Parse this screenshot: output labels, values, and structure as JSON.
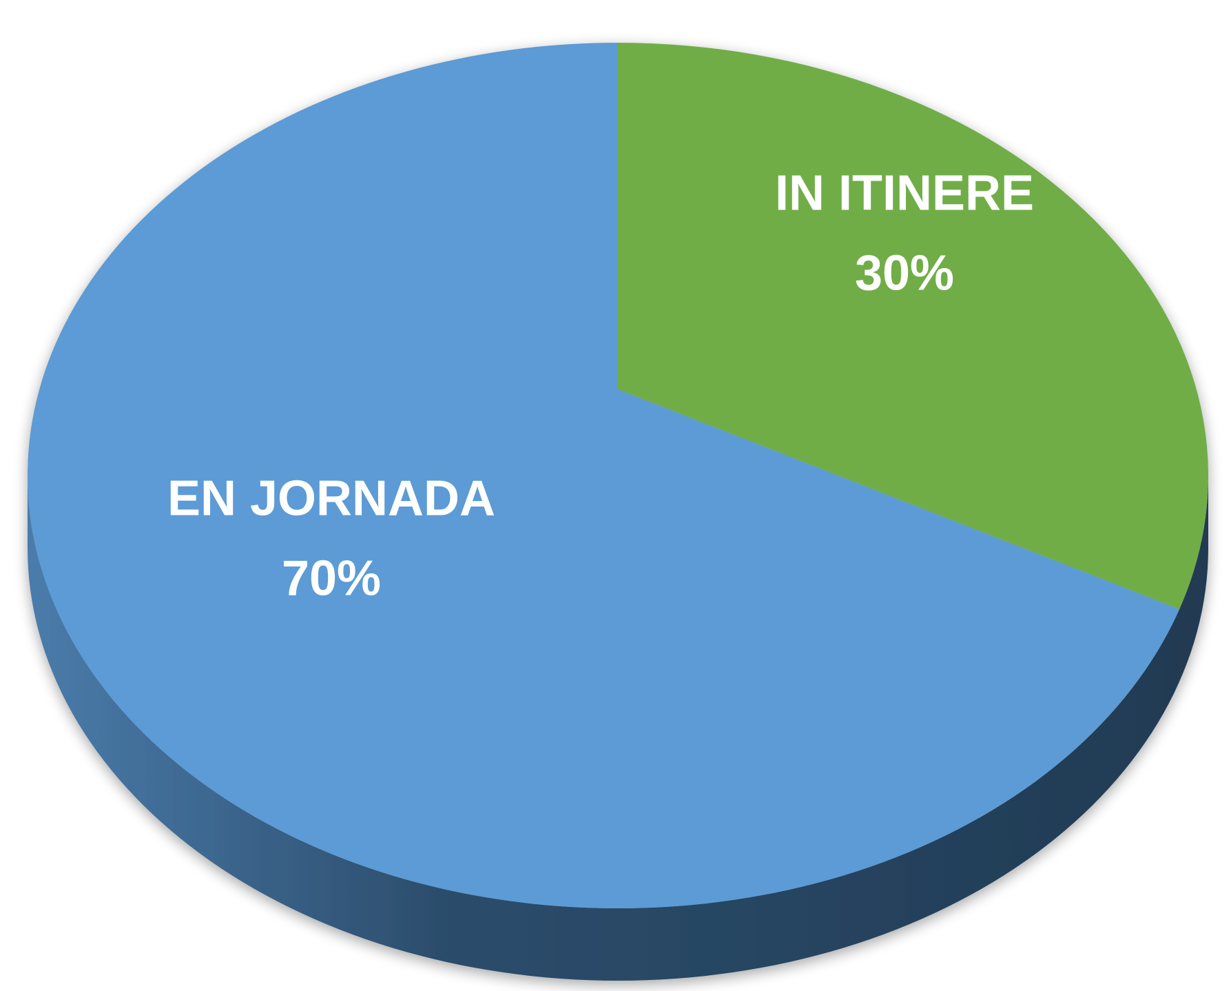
{
  "chart_data": {
    "type": "pie",
    "categories": [
      "EN JORNADA",
      "IN ITINERE"
    ],
    "values": [
      70,
      30
    ],
    "value_labels": [
      "70%",
      "30%"
    ],
    "colors": [
      "#5b9bd5",
      "#70ad47"
    ],
    "start_slice": 1
  }
}
